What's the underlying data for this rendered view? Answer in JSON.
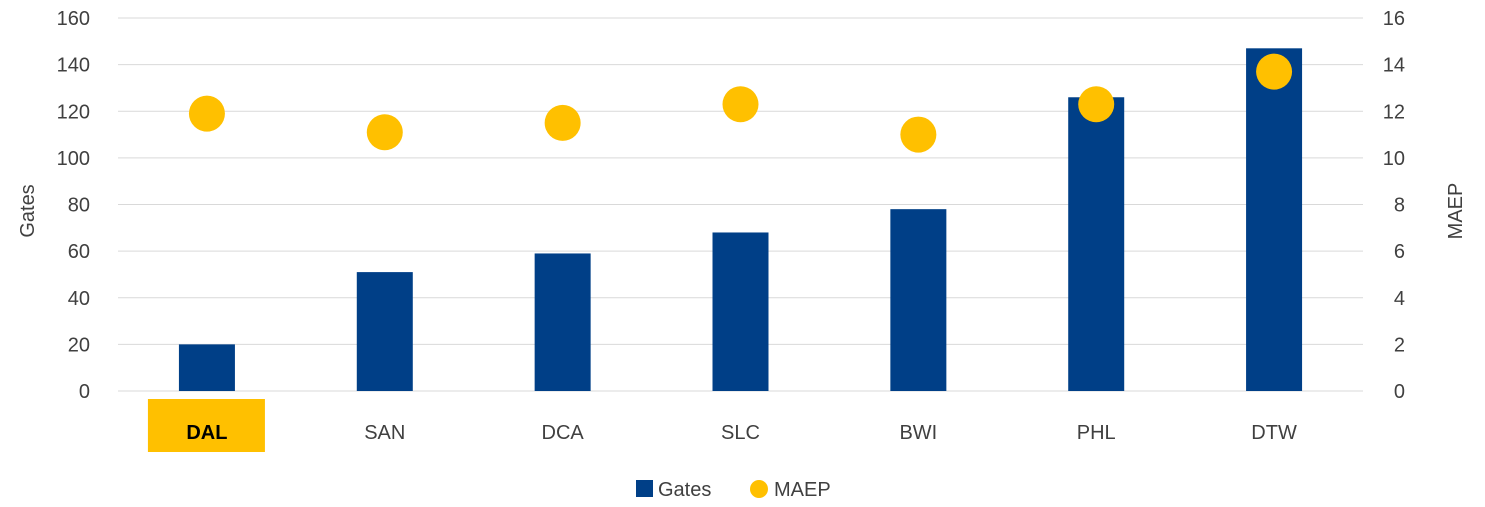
{
  "chart_data": {
    "type": "bar",
    "title": "",
    "categories": [
      "DAL",
      "SAN",
      "DCA",
      "SLC",
      "BWI",
      "PHL",
      "DTW"
    ],
    "highlighted_category": "DAL",
    "series": [
      {
        "name": "Gates",
        "type": "bar",
        "axis": "left",
        "color": "#003f87",
        "values": [
          20,
          51,
          59,
          68,
          78,
          126,
          147
        ]
      },
      {
        "name": "MAEP",
        "type": "scatter",
        "axis": "right",
        "color": "#ffc000",
        "values": [
          11.9,
          11.1,
          11.5,
          12.3,
          11.0,
          12.3,
          13.7
        ]
      }
    ],
    "ylabel": "Gates",
    "ylim": [
      0,
      160
    ],
    "yticks": [
      "0",
      "20",
      "40",
      "60",
      "80",
      "100",
      "120",
      "140",
      "160"
    ],
    "y2label": "MAEP",
    "y2lim": [
      0,
      16
    ],
    "y2ticks": [
      "0",
      "2",
      "4",
      "6",
      "8",
      "10",
      "12",
      "14",
      "16"
    ],
    "grid": true,
    "legend": "bottom-center",
    "highlight_color": "#ffc000"
  }
}
